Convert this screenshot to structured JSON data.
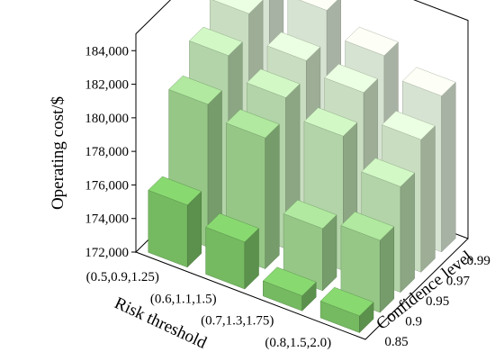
{
  "chart_data": {
    "type": "bar3d",
    "ylabel": "Operating cost/$",
    "xlabel": "Risk threshold",
    "zlabel": "Confidence level",
    "ylim": [
      172000,
      185000
    ],
    "yticks": [
      "172,000",
      "174,000",
      "176,000",
      "178,000",
      "180,000",
      "182,000",
      "184,000"
    ],
    "ytick_values": [
      172000,
      174000,
      176000,
      178000,
      180000,
      182000,
      184000
    ],
    "risk_thresholds": [
      "(0.5,0.9,1.25)",
      "(0.6,1.1,1.5)",
      "(0.7,1.3,1.75)",
      "(0.8,1.5,2.0)"
    ],
    "confidence_levels": [
      "0.85",
      "0.9",
      "0.95",
      "0.97",
      "0.99"
    ],
    "values": [
      [
        175700,
        180500,
        182200,
        183500,
        185000
      ],
      [
        174800,
        179800,
        181000,
        182000,
        183800
      ],
      [
        172900,
        175700,
        180000,
        181400,
        182400
      ],
      [
        173000,
        176300,
        178300,
        179900,
        181300
      ]
    ],
    "colors": {
      "0.85": "#7fc969",
      "0.9": "#a3d893",
      "0.95": "#c2e6b7",
      "0.97": "#daf0d1",
      "0.99": "#eaf7e4"
    }
  }
}
